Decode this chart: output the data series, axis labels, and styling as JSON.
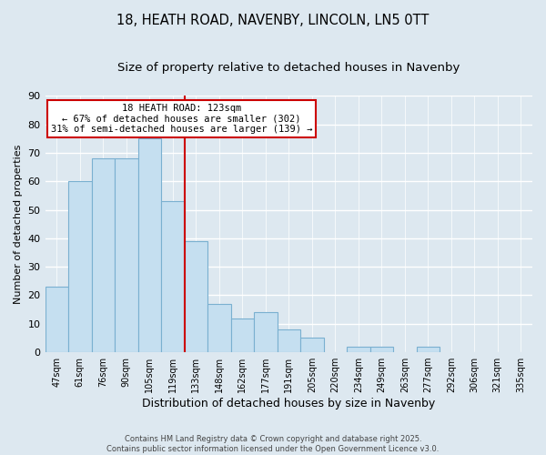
{
  "title": "18, HEATH ROAD, NAVENBY, LINCOLN, LN5 0TT",
  "subtitle": "Size of property relative to detached houses in Navenby",
  "xlabel": "Distribution of detached houses by size in Navenby",
  "ylabel": "Number of detached properties",
  "categories": [
    "47sqm",
    "61sqm",
    "76sqm",
    "90sqm",
    "105sqm",
    "119sqm",
    "133sqm",
    "148sqm",
    "162sqm",
    "177sqm",
    "191sqm",
    "205sqm",
    "220sqm",
    "234sqm",
    "249sqm",
    "263sqm",
    "277sqm",
    "292sqm",
    "306sqm",
    "321sqm",
    "335sqm"
  ],
  "values": [
    23,
    60,
    68,
    68,
    75,
    53,
    39,
    17,
    12,
    14,
    8,
    5,
    0,
    2,
    2,
    0,
    2,
    0,
    0,
    0,
    0
  ],
  "bar_color": "#c5dff0",
  "bar_edge_color": "#7ab0d0",
  "vline_x": 5.5,
  "vline_color": "#cc0000",
  "annotation_title": "18 HEATH ROAD: 123sqm",
  "annotation_line1": "← 67% of detached houses are smaller (302)",
  "annotation_line2": "31% of semi-detached houses are larger (139) →",
  "annotation_box_color": "#ffffff",
  "annotation_box_edge": "#cc0000",
  "ylim": [
    0,
    90
  ],
  "yticks": [
    0,
    10,
    20,
    30,
    40,
    50,
    60,
    70,
    80,
    90
  ],
  "background_color": "#dde8f0",
  "footer1": "Contains HM Land Registry data © Crown copyright and database right 2025.",
  "footer2": "Contains public sector information licensed under the Open Government Licence v3.0.",
  "title_fontsize": 10.5,
  "subtitle_fontsize": 9.5,
  "xlabel_fontsize": 9,
  "ylabel_fontsize": 8,
  "annotation_fontsize": 7.5,
  "footer_fontsize": 6,
  "tick_fontsize": 7,
  "ytick_fontsize": 8
}
